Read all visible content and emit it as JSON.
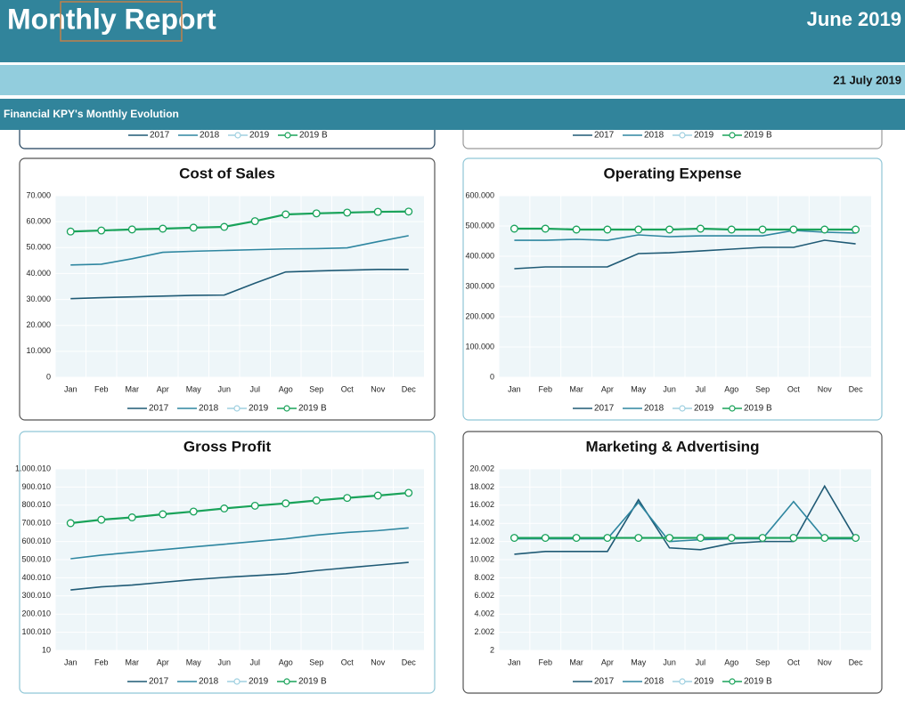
{
  "header": {
    "title": "Monthly Report",
    "period": "June 2019",
    "date": "21 July 2019",
    "section": "Financial KPY's Monthly Evolution"
  },
  "partial_legends": [
    [
      "2017",
      "2018",
      "2019",
      "2019 B"
    ],
    [
      "2017",
      "2018",
      "2019",
      "2019 B"
    ]
  ],
  "chart_data": [
    {
      "type": "line",
      "title": "Cost of Sales",
      "grid": true,
      "legend": "bottom",
      "categories": [
        "Jan",
        "Feb",
        "Mar",
        "Apr",
        "May",
        "Jun",
        "Jul",
        "Ago",
        "Sep",
        "Oct",
        "Nov",
        "Dec"
      ],
      "ylim": [
        0,
        70000
      ],
      "yticks": [
        0,
        {
          "value": 10000,
          "label": "10.000"
        },
        {
          "value": 20000,
          "label": "20.000"
        },
        {
          "value": 30000,
          "label": "30.000"
        },
        {
          "value": 40000,
          "label": "40.000"
        },
        {
          "value": 50000,
          "label": "50.000"
        },
        {
          "value": 60000,
          "label": "60.000"
        },
        {
          "value": 70000,
          "label": "70.000"
        }
      ],
      "series": [
        {
          "name": "2017",
          "color": "#1f5a75",
          "values": [
            30300,
            30700,
            31000,
            31300,
            31600,
            31700,
            36300,
            40600,
            41000,
            41300,
            41600,
            41600
          ]
        },
        {
          "name": "2018",
          "color": "#2e86a0",
          "values": [
            43300,
            43600,
            45700,
            48200,
            48600,
            48900,
            49200,
            49500,
            49600,
            49900,
            52300,
            54600
          ]
        },
        {
          "name": "2019",
          "color": "#9fd0e0",
          "values": [
            56200,
            56600,
            57000,
            57300,
            57700,
            58000,
            60200,
            62800,
            63200,
            63500,
            63800,
            63900
          ]
        },
        {
          "name": "2019 B",
          "color": "#1aa35a",
          "values": [
            56200,
            56600,
            57000,
            57300,
            57700,
            58000,
            60200,
            62800,
            63200,
            63500,
            63800,
            63900
          ]
        }
      ]
    },
    {
      "type": "line",
      "title": "Operating Expense",
      "grid": true,
      "legend": "bottom",
      "categories": [
        "Jan",
        "Feb",
        "Mar",
        "Apr",
        "May",
        "Jun",
        "Jul",
        "Ago",
        "Sep",
        "Oct",
        "Nov",
        "Dec"
      ],
      "ylim": [
        0,
        600000
      ],
      "yticks": [
        0,
        {
          "value": 100000,
          "label": "100.000"
        },
        {
          "value": 200000,
          "label": "200.000"
        },
        {
          "value": 300000,
          "label": "300.000"
        },
        {
          "value": 400000,
          "label": "400.000"
        },
        {
          "value": 500000,
          "label": "500.000"
        },
        {
          "value": 600000,
          "label": "600.000"
        }
      ],
      "series": [
        {
          "name": "2017",
          "color": "#1f5a75",
          "values": [
            358800,
            364700,
            364700,
            365000,
            408800,
            411700,
            417600,
            423500,
            429400,
            429400,
            452900,
            441100
          ]
        },
        {
          "name": "2018",
          "color": "#2e86a0",
          "values": [
            452900,
            452900,
            455900,
            452900,
            470600,
            464700,
            467600,
            467600,
            467600,
            485300,
            479400,
            476500
          ]
        },
        {
          "name": "2019",
          "color": "#9fd0e0",
          "values": [
            491200,
            491200,
            488200,
            488200,
            488200,
            488200,
            491200,
            488200,
            488200,
            488200,
            488200,
            488200
          ]
        },
        {
          "name": "2019 B",
          "color": "#1aa35a",
          "values": [
            491200,
            491200,
            488200,
            488200,
            488200,
            488200,
            491200,
            488200,
            488200,
            488200,
            488200,
            488200
          ]
        }
      ]
    },
    {
      "type": "line",
      "title": "Gross Profit",
      "grid": true,
      "legend": "bottom",
      "categories": [
        "Jan",
        "Feb",
        "Mar",
        "Apr",
        "May",
        "Jun",
        "Jul",
        "Ago",
        "Sep",
        "Oct",
        "Nov",
        "Dec"
      ],
      "ylim": [
        10,
        1000010
      ],
      "yticks": [
        10,
        {
          "value": 100010,
          "label": "100.010"
        },
        {
          "value": 200010,
          "label": "200.010"
        },
        {
          "value": 300010,
          "label": "300.010"
        },
        {
          "value": 400010,
          "label": "400.010"
        },
        {
          "value": 500010,
          "label": "500.010"
        },
        {
          "value": 600010,
          "label": "600.010"
        },
        {
          "value": 700010,
          "label": "700.010"
        },
        {
          "value": 800010,
          "label": "800.010"
        },
        {
          "value": 900010,
          "label": "900.010"
        },
        {
          "value": 1000010,
          "label": "1.000.010"
        }
      ],
      "series": [
        {
          "name": "2017",
          "color": "#1f5a75",
          "values": [
            333000,
            350000,
            360000,
            375000,
            390000,
            402000,
            412000,
            422000,
            440000,
            455000,
            470000,
            485000
          ]
        },
        {
          "name": "2018",
          "color": "#2e86a0",
          "values": [
            505000,
            525000,
            540000,
            555000,
            570000,
            585000,
            600000,
            615000,
            635000,
            650000,
            660000,
            675000
          ]
        },
        {
          "name": "2019",
          "color": "#9fd0e0",
          "values": [
            701000,
            720000,
            733000,
            750000,
            765000,
            782000,
            797000,
            810000,
            826000,
            840000,
            853000,
            868000
          ]
        },
        {
          "name": "2019 B",
          "color": "#1aa35a",
          "values": [
            701000,
            720000,
            733000,
            750000,
            765000,
            782000,
            797000,
            810000,
            826000,
            840000,
            853000,
            868000
          ]
        }
      ]
    },
    {
      "type": "line",
      "title": "Marketing & Advertising",
      "grid": true,
      "legend": "bottom",
      "categories": [
        "Jan",
        "Feb",
        "Mar",
        "Apr",
        "May",
        "Jun",
        "Jul",
        "Ago",
        "Sep",
        "Oct",
        "Nov",
        "Dec"
      ],
      "ylim": [
        2,
        20002
      ],
      "yticks": [
        2,
        {
          "value": 2002,
          "label": "2.002"
        },
        {
          "value": 4002,
          "label": "4.002"
        },
        {
          "value": 6002,
          "label": "6.002"
        },
        {
          "value": 8002,
          "label": "8.002"
        },
        {
          "value": 10002,
          "label": "10.002"
        },
        {
          "value": 12002,
          "label": "12.002"
        },
        {
          "value": 14002,
          "label": "14.002"
        },
        {
          "value": 16002,
          "label": "16.002"
        },
        {
          "value": 18002,
          "label": "18.002"
        },
        {
          "value": 20002,
          "label": "20.002"
        }
      ],
      "series": [
        {
          "name": "2017",
          "color": "#1f5a75",
          "values": [
            10600,
            10900,
            10900,
            10900,
            16600,
            11300,
            11100,
            11800,
            12000,
            12000,
            18100,
            12300
          ]
        },
        {
          "name": "2018",
          "color": "#2e86a0",
          "values": [
            12300,
            12300,
            12300,
            12300,
            16300,
            12000,
            12200,
            12300,
            12300,
            16400,
            12300,
            12300
          ]
        },
        {
          "name": "2019",
          "color": "#9fd0e0",
          "values": [
            12400,
            12400,
            12400,
            12400,
            12400,
            12400,
            12400,
            12400,
            12400,
            12400,
            12400,
            12400
          ]
        },
        {
          "name": "2019 B",
          "color": "#1aa35a",
          "values": [
            12400,
            12400,
            12400,
            12400,
            12400,
            12400,
            12400,
            12400,
            12400,
            12400,
            12400,
            12400
          ]
        }
      ]
    }
  ]
}
